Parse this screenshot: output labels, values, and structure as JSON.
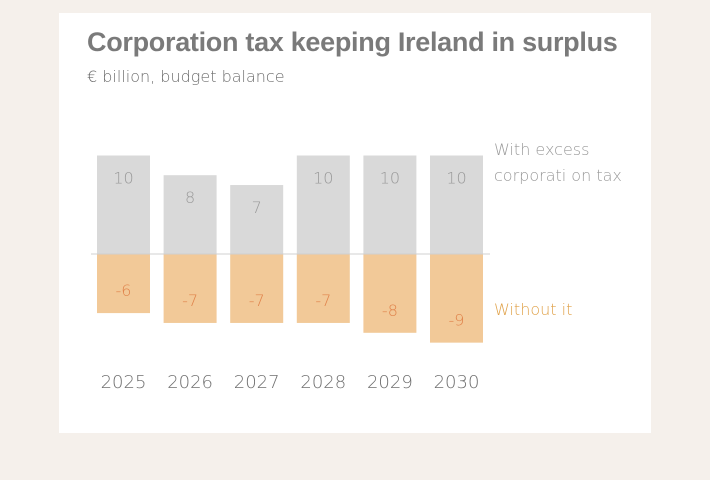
{
  "chart_data": {
    "type": "bar",
    "title": "Corporation tax keeping Ireland in surplus",
    "subtitle": "€ billion, budget balance",
    "categories": [
      "2025",
      "2026",
      "2027",
      "2028",
      "2029",
      "2030"
    ],
    "series": [
      {
        "name": "With excess corporation tax",
        "legend_lines": [
          "With excess",
          "corporati on tax"
        ],
        "values": [
          10,
          8,
          7,
          10,
          10,
          10
        ],
        "labels": [
          "10",
          "8",
          "7",
          "10",
          "10",
          "10"
        ],
        "color": "#d9d9d9",
        "label_color": "#9a9a9a"
      },
      {
        "name": "Without it",
        "legend_lines": [
          "Without it"
        ],
        "values": [
          -6,
          -7,
          -7,
          -7,
          -8,
          -9
        ],
        "labels": [
          "-6",
          "-7",
          "-7",
          "-7",
          "-8",
          "-9"
        ],
        "color": "#f2c998",
        "label_color": "#e0824a",
        "legend_color": "#e0a24a"
      }
    ],
    "xlabel": "",
    "ylabel": "",
    "ylim": [
      -9,
      10
    ],
    "grid": false,
    "baseline_color": "#d0d0d0",
    "legend": "right, direct labels"
  },
  "colors": {
    "background": "#f5f0eb",
    "card": "#ffffff",
    "title": "#7a7a7a",
    "subtitle": "#6e6e6e"
  }
}
